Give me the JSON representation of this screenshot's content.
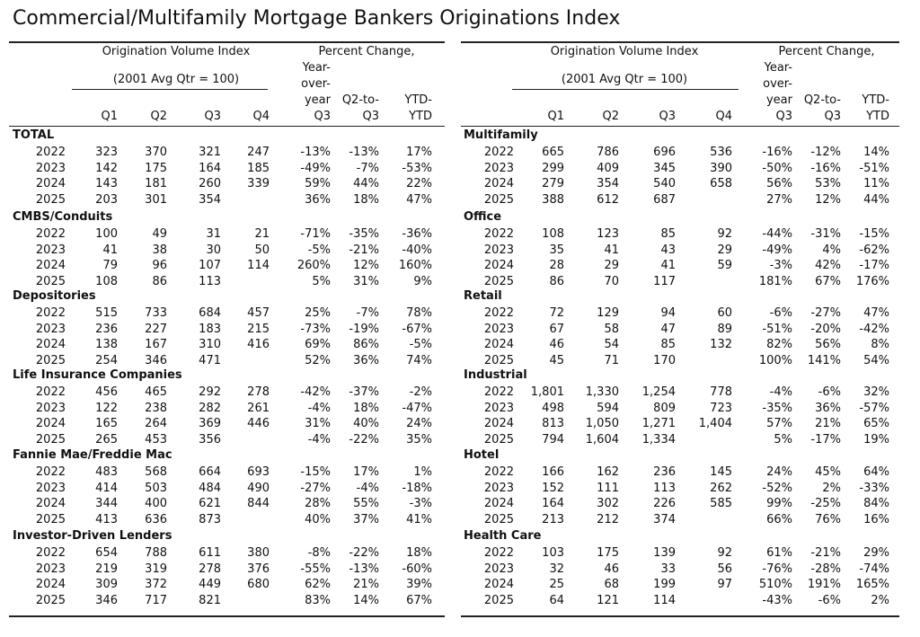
{
  "title": "Commercial/Multifamily Mortgage Bankers Originations Index",
  "panels": [
    {
      "header": {
        "index_title": "Origination Volume Index",
        "index_subtitle": "(2001 Avg Qtr = 100)",
        "pct_title": "Percent Change,",
        "columns": [
          [
            "Q1"
          ],
          [
            "Q2"
          ],
          [
            "Q3"
          ],
          [
            "Q4"
          ],
          [
            "Year-",
            "over-",
            "year",
            "Q3"
          ],
          [
            "Q2-to-",
            "Q3"
          ],
          [
            "YTD-",
            "YTD"
          ]
        ]
      },
      "groups": [
        {
          "name": "TOTAL",
          "rows": [
            [
              "2022",
              "323",
              "370",
              "321",
              "247",
              "-13%",
              "-13%",
              "17%"
            ],
            [
              "2023",
              "142",
              "175",
              "164",
              "185",
              "-49%",
              "-7%",
              "-53%"
            ],
            [
              "2024",
              "143",
              "181",
              "260",
              "339",
              "59%",
              "44%",
              "22%"
            ],
            [
              "2025",
              "203",
              "301",
              "354",
              null,
              "36%",
              "18%",
              "47%"
            ]
          ]
        },
        {
          "name": "CMBS/Conduits",
          "rows": [
            [
              "2022",
              "100",
              "49",
              "31",
              "21",
              "-71%",
              "-35%",
              "-36%"
            ],
            [
              "2023",
              "41",
              "38",
              "30",
              "50",
              "-5%",
              "-21%",
              "-40%"
            ],
            [
              "2024",
              "79",
              "96",
              "107",
              "114",
              "260%",
              "12%",
              "160%"
            ],
            [
              "2025",
              "108",
              "86",
              "113",
              null,
              "5%",
              "31%",
              "9%"
            ]
          ]
        },
        {
          "name": "Depositories",
          "rows": [
            [
              "2022",
              "515",
              "733",
              "684",
              "457",
              "25%",
              "-7%",
              "78%"
            ],
            [
              "2023",
              "236",
              "227",
              "183",
              "215",
              "-73%",
              "-19%",
              "-67%"
            ],
            [
              "2024",
              "138",
              "167",
              "310",
              "416",
              "69%",
              "86%",
              "-5%"
            ],
            [
              "2025",
              "254",
              "346",
              "471",
              null,
              "52%",
              "36%",
              "74%"
            ]
          ]
        },
        {
          "name": "Life Insurance Companies",
          "rows": [
            [
              "2022",
              "456",
              "465",
              "292",
              "278",
              "-42%",
              "-37%",
              "-2%"
            ],
            [
              "2023",
              "122",
              "238",
              "282",
              "261",
              "-4%",
              "18%",
              "-47%"
            ],
            [
              "2024",
              "165",
              "264",
              "369",
              "446",
              "31%",
              "40%",
              "24%"
            ],
            [
              "2025",
              "265",
              "453",
              "356",
              null,
              "-4%",
              "-22%",
              "35%"
            ]
          ]
        },
        {
          "name": "Fannie Mae/Freddie Mac",
          "rows": [
            [
              "2022",
              "483",
              "568",
              "664",
              "693",
              "-15%",
              "17%",
              "1%"
            ],
            [
              "2023",
              "414",
              "503",
              "484",
              "490",
              "-27%",
              "-4%",
              "-18%"
            ],
            [
              "2024",
              "344",
              "400",
              "621",
              "844",
              "28%",
              "55%",
              "-3%"
            ],
            [
              "2025",
              "413",
              "636",
              "873",
              null,
              "40%",
              "37%",
              "41%"
            ]
          ]
        },
        {
          "name": "Investor-Driven Lenders",
          "rows": [
            [
              "2022",
              "654",
              "788",
              "611",
              "380",
              "-8%",
              "-22%",
              "18%"
            ],
            [
              "2023",
              "219",
              "319",
              "278",
              "376",
              "-55%",
              "-13%",
              "-60%"
            ],
            [
              "2024",
              "309",
              "372",
              "449",
              "680",
              "62%",
              "21%",
              "39%"
            ],
            [
              "2025",
              "346",
              "717",
              "821",
              null,
              "83%",
              "14%",
              "67%"
            ]
          ]
        }
      ]
    },
    {
      "header": {
        "index_title": "Origination Volume Index",
        "index_subtitle": "(2001 Avg Qtr = 100)",
        "pct_title": "Percent Change,",
        "columns": [
          [
            "Q1"
          ],
          [
            "Q2"
          ],
          [
            "Q3"
          ],
          [
            "Q4"
          ],
          [
            "Year-",
            "over-",
            "year",
            "Q3"
          ],
          [
            "Q2-to-",
            "Q3"
          ],
          [
            "YTD-",
            "YTD"
          ]
        ]
      },
      "groups": [
        {
          "name": "Multifamily",
          "rows": [
            [
              "2022",
              "665",
              "786",
              "696",
              "536",
              "-16%",
              "-12%",
              "14%"
            ],
            [
              "2023",
              "299",
              "409",
              "345",
              "390",
              "-50%",
              "-16%",
              "-51%"
            ],
            [
              "2024",
              "279",
              "354",
              "540",
              "658",
              "56%",
              "53%",
              "11%"
            ],
            [
              "2025",
              "388",
              "612",
              "687",
              null,
              "27%",
              "12%",
              "44%"
            ]
          ]
        },
        {
          "name": "Office",
          "rows": [
            [
              "2022",
              "108",
              "123",
              "85",
              "92",
              "-44%",
              "-31%",
              "-15%"
            ],
            [
              "2023",
              "35",
              "41",
              "43",
              "29",
              "-49%",
              "4%",
              "-62%"
            ],
            [
              "2024",
              "28",
              "29",
              "41",
              "59",
              "-3%",
              "42%",
              "-17%"
            ],
            [
              "2025",
              "86",
              "70",
              "117",
              null,
              "181%",
              "67%",
              "176%"
            ]
          ]
        },
        {
          "name": "Retail",
          "rows": [
            [
              "2022",
              "72",
              "129",
              "94",
              "60",
              "-6%",
              "-27%",
              "47%"
            ],
            [
              "2023",
              "67",
              "58",
              "47",
              "89",
              "-51%",
              "-20%",
              "-42%"
            ],
            [
              "2024",
              "46",
              "54",
              "85",
              "132",
              "82%",
              "56%",
              "8%"
            ],
            [
              "2025",
              "45",
              "71",
              "170",
              null,
              "100%",
              "141%",
              "54%"
            ]
          ]
        },
        {
          "name": "Industrial",
          "rows": [
            [
              "2022",
              "1,801",
              "1,330",
              "1,254",
              "778",
              "-4%",
              "-6%",
              "32%"
            ],
            [
              "2023",
              "498",
              "594",
              "809",
              "723",
              "-35%",
              "36%",
              "-57%"
            ],
            [
              "2024",
              "813",
              "1,050",
              "1,271",
              "1,404",
              "57%",
              "21%",
              "65%"
            ],
            [
              "2025",
              "794",
              "1,604",
              "1,334",
              null,
              "5%",
              "-17%",
              "19%"
            ]
          ]
        },
        {
          "name": "Hotel",
          "rows": [
            [
              "2022",
              "166",
              "162",
              "236",
              "145",
              "24%",
              "45%",
              "64%"
            ],
            [
              "2023",
              "152",
              "111",
              "113",
              "262",
              "-52%",
              "2%",
              "-33%"
            ],
            [
              "2024",
              "164",
              "302",
              "226",
              "585",
              "99%",
              "-25%",
              "84%"
            ],
            [
              "2025",
              "213",
              "212",
              "374",
              null,
              "66%",
              "76%",
              "16%"
            ]
          ]
        },
        {
          "name": "Health Care",
          "rows": [
            [
              "2022",
              "103",
              "175",
              "139",
              "92",
              "61%",
              "-21%",
              "29%"
            ],
            [
              "2023",
              "32",
              "46",
              "33",
              "56",
              "-76%",
              "-28%",
              "-74%"
            ],
            [
              "2024",
              "25",
              "68",
              "199",
              "97",
              "510%",
              "191%",
              "165%"
            ],
            [
              "2025",
              "64",
              "121",
              "114",
              null,
              "-43%",
              "-6%",
              "2%"
            ]
          ]
        }
      ]
    }
  ]
}
